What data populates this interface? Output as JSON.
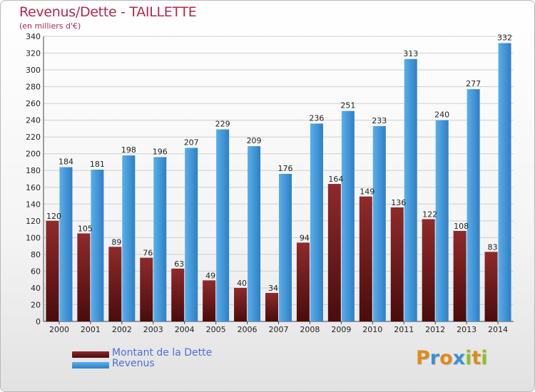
{
  "title": "Revenus/Dette - TAILLETTE",
  "subtitle": "(en milliers d'€)",
  "logo": {
    "text": "Proxiti",
    "letters": [
      "P",
      "r",
      "o",
      "x",
      "i",
      "t",
      "i"
    ],
    "colors": [
      "#e08a1e",
      "#3a8fd8",
      "#e08a1e",
      "#3a8fd8",
      "#8fbf2a",
      "#e08a1e",
      "#8fbf2a"
    ]
  },
  "legend": {
    "dette": "Montant de la Dette",
    "revenus": "Revenus"
  },
  "colors": {
    "dette_top": "#8f2a2a",
    "dette_bottom": "#4a0c0c",
    "revenus_top": "#5aaeea",
    "revenus_bottom": "#2e7fc4",
    "grid": "#cfcfcf"
  },
  "chart_data": {
    "type": "bar",
    "title": "Revenus/Dette - TAILLETTE",
    "ylabel": "(en milliers d'€)",
    "xlabel": "",
    "ylim": [
      0,
      340
    ],
    "ytick_step": 20,
    "grid": true,
    "legend_position": "bottom-left",
    "categories": [
      "2000",
      "2001",
      "2002",
      "2003",
      "2004",
      "2005",
      "2006",
      "2007",
      "2008",
      "2009",
      "2010",
      "2011",
      "2012",
      "2013",
      "2014"
    ],
    "series": [
      {
        "name": "Montant de la Dette",
        "values": [
          120,
          105,
          89,
          76,
          63,
          49,
          40,
          34,
          94,
          164,
          149,
          136,
          122,
          108,
          83
        ]
      },
      {
        "name": "Revenus",
        "values": [
          184,
          181,
          198,
          196,
          207,
          229,
          209,
          176,
          236,
          251,
          233,
          313,
          240,
          277,
          332
        ]
      }
    ]
  }
}
